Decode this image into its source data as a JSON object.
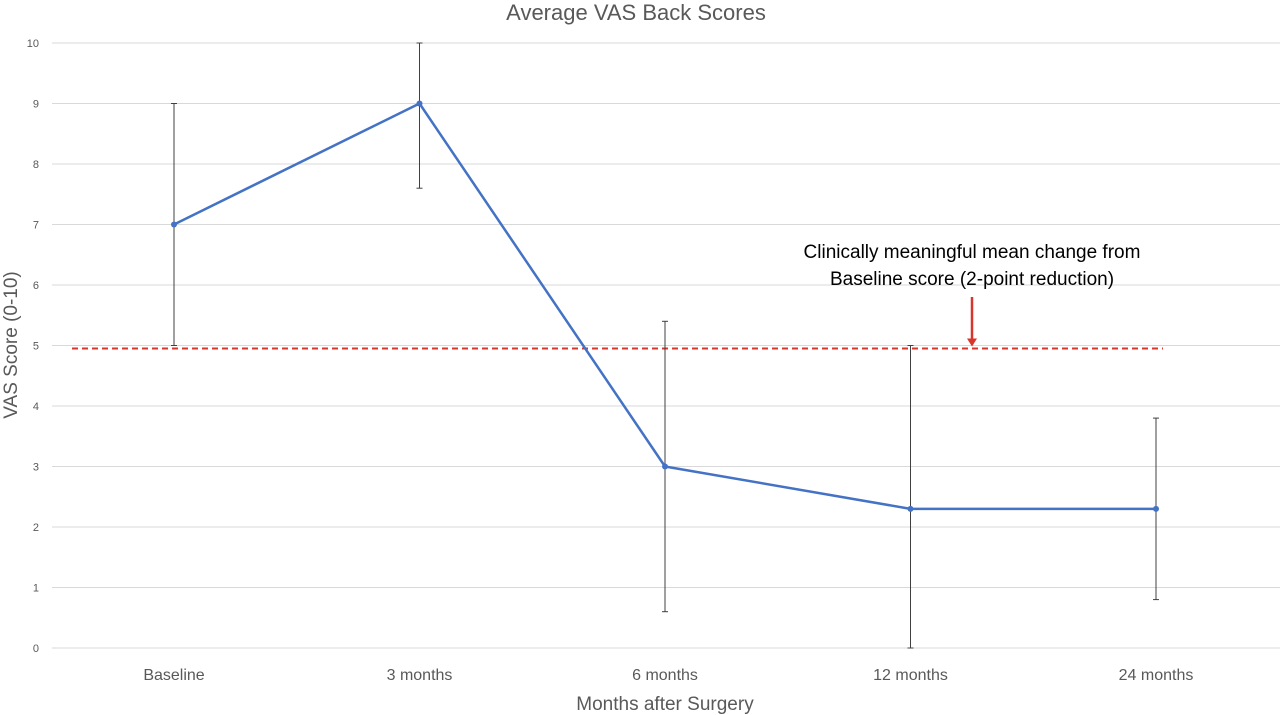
{
  "chart_data": {
    "type": "line",
    "title": "Average VAS Back Scores",
    "xlabel": "Months after Surgery",
    "ylabel": "VAS Score (0-10)",
    "ylim": [
      0,
      10
    ],
    "yticks": [
      "0",
      "1",
      "2",
      "3",
      "4",
      "5",
      "6",
      "7",
      "8",
      "9",
      "10"
    ],
    "grid": true,
    "categories": [
      "Baseline",
      "3 months",
      "6 months",
      "12 months",
      "24 months"
    ],
    "series": [
      {
        "values": [
          7.0,
          9.0,
          3.0,
          2.3,
          2.3
        ],
        "error_low": [
          5.0,
          7.6,
          0.6,
          0.0,
          0.8
        ],
        "error_high": [
          9.0,
          10.0,
          5.4,
          5.0,
          3.8
        ],
        "color": "#4472c4"
      }
    ],
    "reference_line": {
      "value": 4.95,
      "color": "#d9362b",
      "style": "dashed"
    },
    "annotation": {
      "lines": [
        "Clinically meaningful mean change from",
        "Baseline score (2-point reduction)"
      ],
      "arrow_color": "#d9362b"
    }
  }
}
